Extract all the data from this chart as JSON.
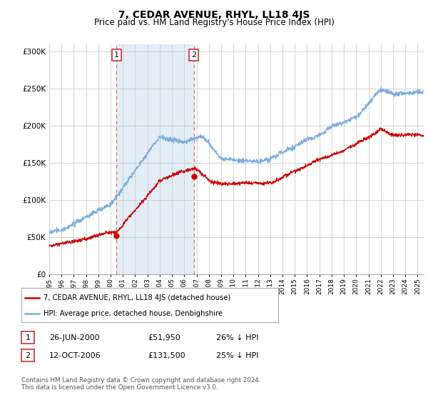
{
  "title": "7, CEDAR AVENUE, RHYL, LL18 4JS",
  "subtitle": "Price paid vs. HM Land Registry's House Price Index (HPI)",
  "ylabel_ticks": [
    "£0",
    "£50K",
    "£100K",
    "£150K",
    "£200K",
    "£250K",
    "£300K"
  ],
  "ytick_values": [
    0,
    50000,
    100000,
    150000,
    200000,
    250000,
    300000
  ],
  "ylim": [
    0,
    310000
  ],
  "xlim_start": 1995.0,
  "xlim_end": 2025.5,
  "sale1_date": 2000.48,
  "sale1_price": 51950,
  "sale1_label": "1",
  "sale2_date": 2006.78,
  "sale2_price": 131500,
  "sale2_label": "2",
  "line_red": "#cc0000",
  "line_blue": "#7aade0",
  "vline_color": "#e87070",
  "bg_color": "#ffffff",
  "grid_color": "#cccccc",
  "legend_red_label": "7, CEDAR AVENUE, RHYL, LL18 4JS (detached house)",
  "legend_blue_label": "HPI: Average price, detached house, Denbighshire",
  "table_row1": [
    "1",
    "26-JUN-2000",
    "£51,950",
    "26% ↓ HPI"
  ],
  "table_row2": [
    "2",
    "12-OCT-2006",
    "£131,500",
    "25% ↓ HPI"
  ],
  "footnote": "Contains HM Land Registry data © Crown copyright and database right 2024.\nThis data is licensed under the Open Government Licence v3.0.",
  "title_fontsize": 10,
  "subtitle_fontsize": 8.5,
  "axis_fontsize": 7.5,
  "annotation_fontsize": 8
}
